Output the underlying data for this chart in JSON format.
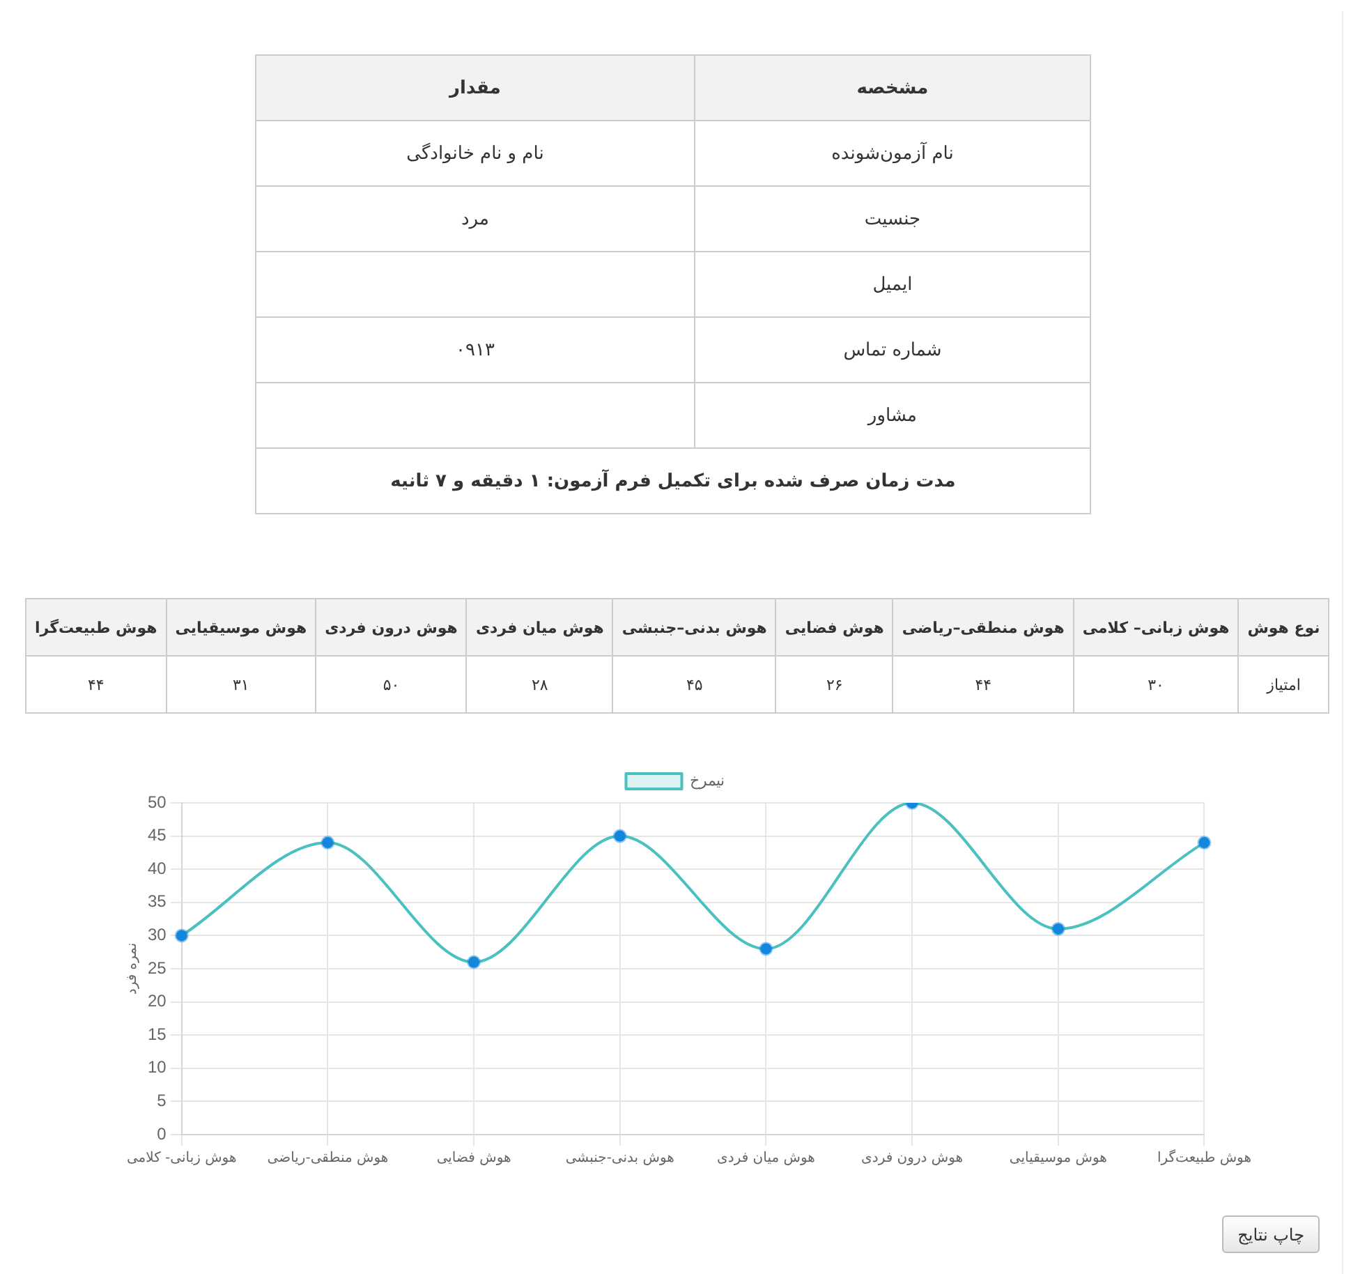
{
  "chart_data": [
    {
      "type": "other",
      "categories": [
        "مشخصه",
        "مقدار"
      ],
      "cell_labels": [
        [
          "نام آزمون‌شونده",
          "نام و نام خانوادگی"
        ],
        [
          "جنسیت",
          "مرد"
        ],
        [
          "ایمیل",
          null
        ],
        [
          "شماره تماس",
          "۰۹۱۳"
        ],
        [
          "مشاور",
          null
        ]
      ],
      "annotations": [
        "مدت زمان صرف شده برای تکمیل فرم آزمون: ۱ دقیقه و ۷ ثانیه"
      ]
    },
    {
      "type": "other",
      "categories": [
        "نوع هوش",
        "هوش زبانی– کلامی",
        "هوش منطقی–ریاضی",
        "هوش فضایی",
        "هوش بدنی–جنبشی",
        "هوش میان فردی",
        "هوش درون فردی",
        "هوش موسیقیایی",
        "هوش طبیعت‌گرا"
      ],
      "cell_labels": [
        [
          "امتیاز",
          "۳۰",
          "۴۴",
          "۲۶",
          "۴۵",
          "۲۸",
          "۵۰",
          "۳۱",
          "۴۴"
        ]
      ]
    },
    {
      "type": "line",
      "categories": [
        "هوش زبانی- کلامی",
        "هوش منطقی-ریاضی",
        "هوش فضایی",
        "هوش بدنی-جنبشی",
        "هوش میان فردی",
        "هوش درون فردی",
        "هوش موسیقیایی",
        "هوش طبیعت‌گرا"
      ],
      "series": [
        {
          "name": "نیمرخ",
          "color": "#4bc0c0",
          "colors": [
            "#1387dd",
            "#1387dd",
            "#1387dd",
            "#1387dd",
            "#1387dd",
            "#1387dd",
            "#1387dd",
            "#1387dd"
          ],
          "values": [
            30,
            44,
            26,
            45,
            28,
            50,
            31,
            44
          ]
        }
      ],
      "ylim": [
        0,
        50
      ],
      "yticks": [
        0,
        5,
        10,
        15,
        20,
        25,
        30,
        35,
        40,
        45,
        50
      ],
      "ylabel": "نمره فرد",
      "grid": true,
      "legend": "top",
      "marker": "circle",
      "annotations": [
        "چاپ نتایج"
      ]
    }
  ]
}
